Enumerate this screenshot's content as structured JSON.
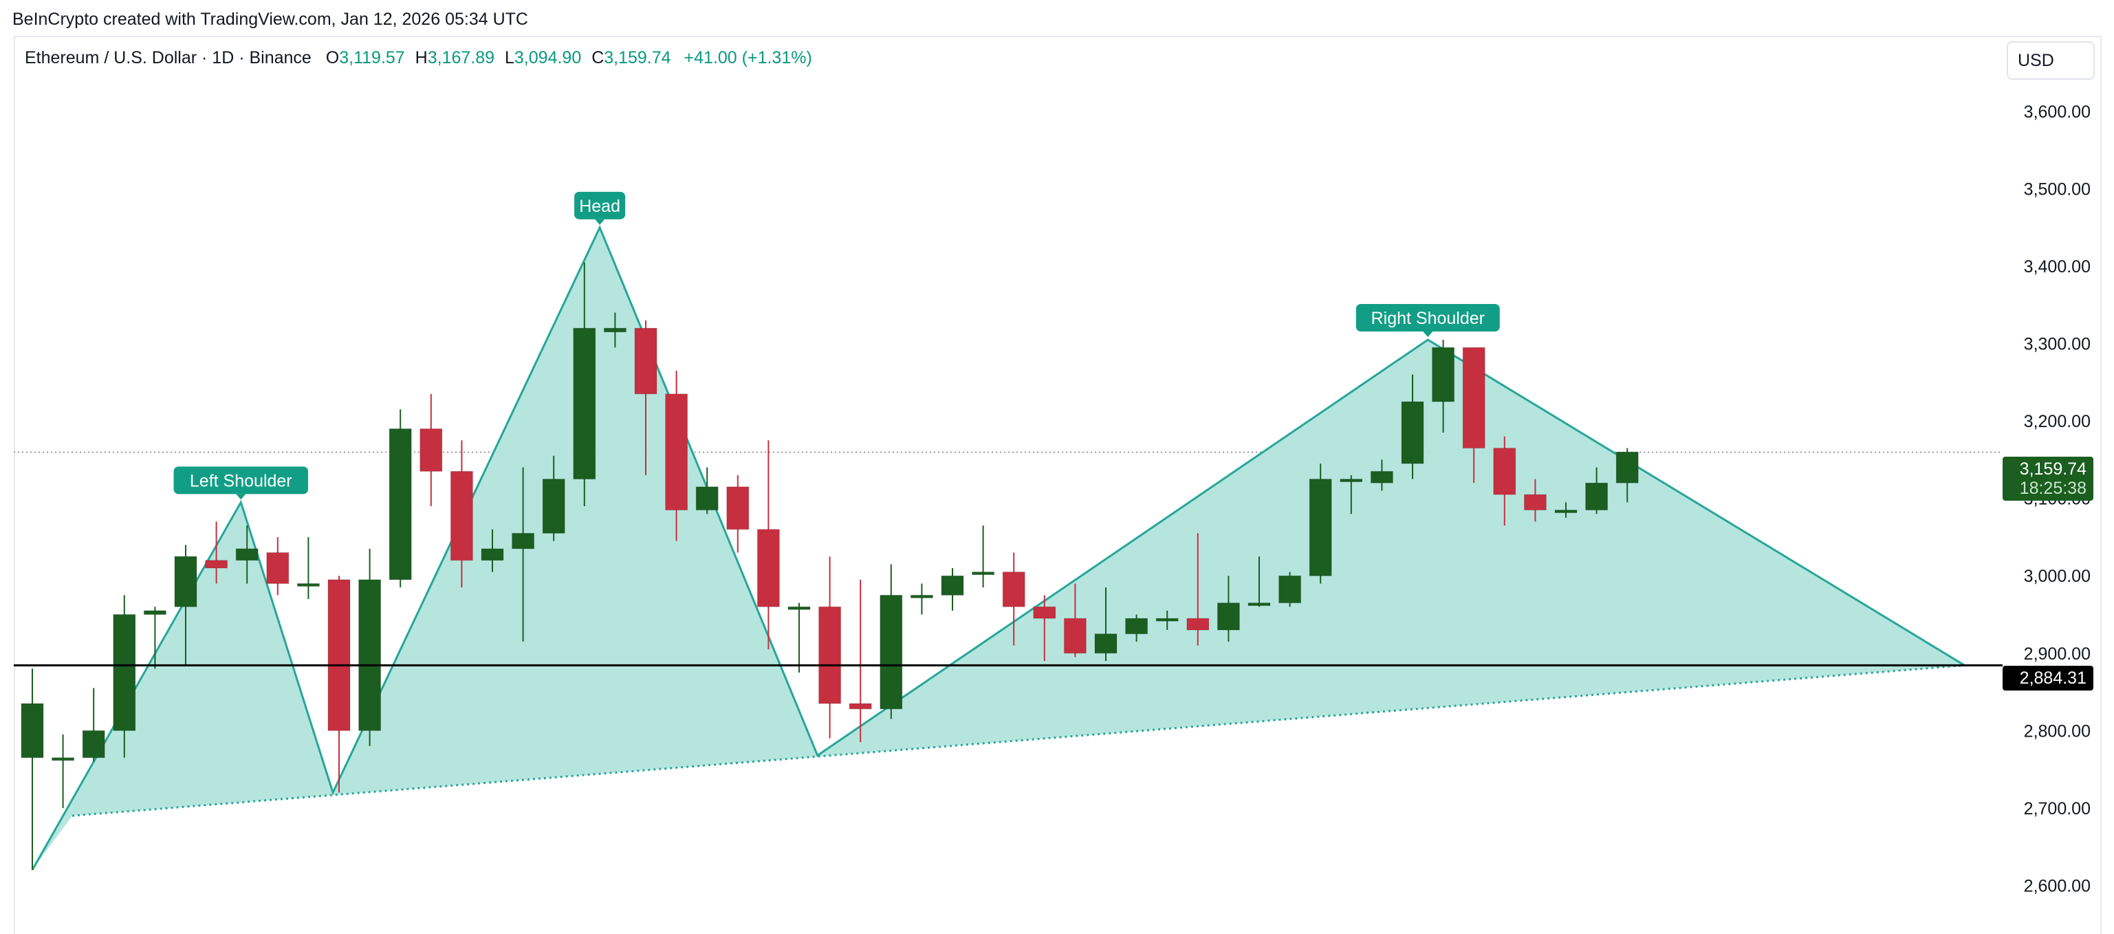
{
  "credit": "BeInCrypto created with TradingView.com, Jan 12, 2026 05:34 UTC",
  "legend": {
    "symbol": "Ethereum / U.S. Dollar · 1D · Binance",
    "open_label": "O",
    "open": "3,119.57",
    "high_label": "H",
    "high": "3,167.89",
    "low_label": "L",
    "low": "3,094.90",
    "close_label": "C",
    "close": "3,159.74",
    "change": "+41.00 (+1.31%)"
  },
  "currency": "USD",
  "price_label": {
    "price": "3,159.74",
    "countdown": "18:25:38"
  },
  "level_label": "2,884.31",
  "colors": {
    "up": "#1b5e20",
    "down": "#c62f3f",
    "pattern": "#26a69a",
    "fill": "#b2e4dc",
    "label_bg": "#129e86"
  },
  "chart_data": {
    "type": "candlestick",
    "yaxis": {
      "ticks": [
        "3,600.00",
        "3,500.00",
        "3,400.00",
        "3,300.00",
        "3,200.00",
        "3,100.00",
        "3,000.00",
        "2,900.00",
        "2,800.00",
        "2,700.00",
        "2,600.00"
      ],
      "tick_values": [
        3600,
        3500,
        3400,
        3300,
        3200,
        3100,
        3000,
        2900,
        2800,
        2700,
        2600
      ],
      "ylim": [
        2555,
        3680
      ]
    },
    "candles": [
      [
        2765,
        2880,
        2620,
        2835
      ],
      [
        2765,
        2795,
        2700,
        2765
      ],
      [
        2765,
        2855,
        2760,
        2800
      ],
      [
        2800,
        2975,
        2765,
        2950
      ],
      [
        2950,
        2960,
        2880,
        2955
      ],
      [
        2960,
        3040,
        2885,
        3025
      ],
      [
        3020,
        3070,
        2990,
        3010
      ],
      [
        3020,
        3065,
        2990,
        3035
      ],
      [
        3030,
        3050,
        2975,
        2990
      ],
      [
        2990,
        3050,
        2970,
        2990
      ],
      [
        2995,
        3000,
        2720,
        2800
      ],
      [
        2800,
        3035,
        2780,
        2995
      ],
      [
        2995,
        3215,
        2985,
        3190
      ],
      [
        3190,
        3235,
        3090,
        3135
      ],
      [
        3135,
        3175,
        2985,
        3020
      ],
      [
        3020,
        3060,
        3005,
        3035
      ],
      [
        3035,
        3140,
        2915,
        3055
      ],
      [
        3055,
        3155,
        3045,
        3125
      ],
      [
        3125,
        3405,
        3090,
        3320
      ],
      [
        3315,
        3340,
        3295,
        3320
      ],
      [
        3320,
        3330,
        3130,
        3235
      ],
      [
        3235,
        3265,
        3045,
        3085
      ],
      [
        3085,
        3140,
        3080,
        3115
      ],
      [
        3115,
        3130,
        3030,
        3060
      ],
      [
        3060,
        3175,
        2905,
        2960
      ],
      [
        2960,
        2965,
        2875,
        2960
      ],
      [
        2960,
        3025,
        2790,
        2835
      ],
      [
        2835,
        2995,
        2785,
        2828
      ],
      [
        2828,
        3015,
        2815,
        2975
      ],
      [
        2975,
        2990,
        2950,
        2975
      ],
      [
        2975,
        3010,
        2955,
        3000
      ],
      [
        3005,
        3065,
        2985,
        3005
      ],
      [
        3005,
        3030,
        2910,
        2960
      ],
      [
        2960,
        2975,
        2890,
        2945
      ],
      [
        2945,
        2990,
        2895,
        2900
      ],
      [
        2900,
        2985,
        2890,
        2925
      ],
      [
        2925,
        2950,
        2915,
        2945
      ],
      [
        2945,
        2955,
        2930,
        2945
      ],
      [
        2945,
        3055,
        2910,
        2930
      ],
      [
        2930,
        3000,
        2915,
        2965
      ],
      [
        2965,
        3025,
        2960,
        2965
      ],
      [
        2965,
        3005,
        2960,
        3000
      ],
      [
        3000,
        3145,
        2990,
        3125
      ],
      [
        3125,
        3130,
        3080,
        3125
      ],
      [
        3120,
        3150,
        3110,
        3135
      ],
      [
        3145,
        3260,
        3125,
        3225
      ],
      [
        3225,
        3305,
        3185,
        3295
      ],
      [
        3295,
        3295,
        3120,
        3165
      ],
      [
        3165,
        3180,
        3065,
        3105
      ],
      [
        3105,
        3125,
        3070,
        3085
      ],
      [
        3085,
        3095,
        3075,
        3085
      ],
      [
        3085,
        3140,
        3080,
        3120
      ],
      [
        3120,
        3165,
        3095,
        3160
      ]
    ],
    "current_price_line": 3159.74,
    "neckline": 2884.31,
    "pattern": {
      "name": "head and shoulders",
      "points": [
        [
          0,
          2620
        ],
        [
          6.8,
          3095
        ],
        [
          9.8,
          2720
        ],
        [
          18.5,
          3450
        ],
        [
          25.6,
          2768
        ],
        [
          45.5,
          3305
        ],
        [
          63,
          2884.31
        ]
      ],
      "baseline": [
        [
          1.3,
          2690
        ],
        [
          63,
          2884.31
        ]
      ],
      "annotations": [
        {
          "text": "Left Shoulder",
          "at": 6.8
        },
        {
          "text": "Head",
          "at": 18.5
        },
        {
          "text": "Right Shoulder",
          "at": 45.5
        }
      ]
    }
  }
}
